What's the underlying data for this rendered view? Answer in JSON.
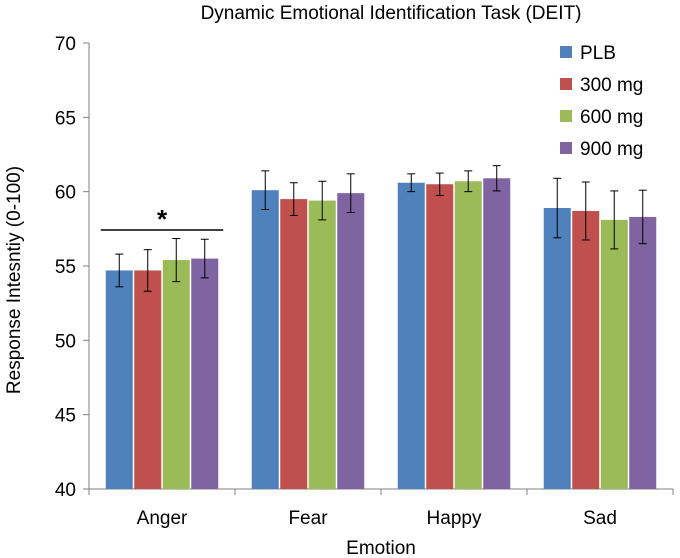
{
  "chart_data": {
    "type": "bar",
    "title": "Dynamic Emotional Identification Task (DEIT)",
    "xlabel": "Emotion",
    "ylabel": "Response Intesntiy (0-100)",
    "ylim": [
      40,
      70
    ],
    "yticks": [
      40,
      45,
      50,
      55,
      60,
      65,
      70
    ],
    "ytick_labels": [
      "40",
      "45",
      "50",
      "55",
      "60",
      "65",
      "70"
    ],
    "categories": [
      "Anger",
      "Fear",
      "Happy",
      "Sad"
    ],
    "series": [
      {
        "name": "PLB",
        "color": "#4f81bd",
        "values": [
          54.7,
          60.1,
          60.6,
          58.9
        ],
        "errors": [
          1.1,
          1.3,
          0.6,
          2.0
        ]
      },
      {
        "name": "300 mg",
        "color": "#c0504d",
        "values": [
          54.7,
          59.5,
          60.5,
          58.7
        ],
        "errors": [
          1.4,
          1.1,
          0.75,
          1.95
        ]
      },
      {
        "name": "600 mg",
        "color": "#9bbb59",
        "values": [
          55.4,
          59.4,
          60.7,
          58.1
        ],
        "errors": [
          1.45,
          1.3,
          0.7,
          1.95
        ]
      },
      {
        "name": "900 mg",
        "color": "#8064a2",
        "values": [
          55.5,
          59.9,
          60.9,
          58.3
        ],
        "errors": [
          1.3,
          1.3,
          0.85,
          1.8
        ]
      }
    ],
    "legend_position": "top-right",
    "annotations": [
      {
        "text": "*",
        "category": "Anger"
      }
    ]
  }
}
